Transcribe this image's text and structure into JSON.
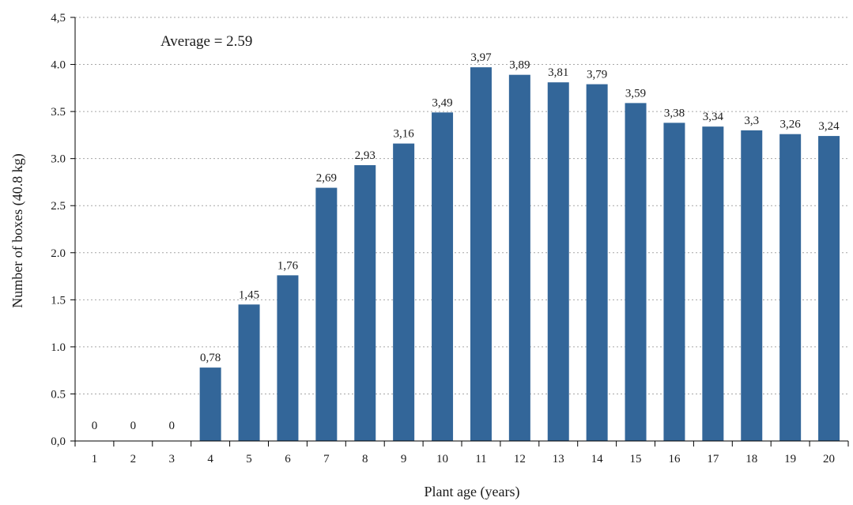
{
  "chart_data": {
    "type": "bar",
    "title": "",
    "xlabel": "Plant age (years)",
    "ylabel": "Number of boxes (40.8 kg)",
    "annotation": "Average = 2.59",
    "categories": [
      "1",
      "2",
      "3",
      "4",
      "5",
      "6",
      "7",
      "8",
      "9",
      "10",
      "11",
      "12",
      "13",
      "14",
      "15",
      "16",
      "17",
      "18",
      "19",
      "20"
    ],
    "values": [
      0,
      0,
      0,
      0.78,
      1.45,
      1.76,
      2.69,
      2.93,
      3.16,
      3.49,
      3.97,
      3.89,
      3.81,
      3.79,
      3.59,
      3.38,
      3.34,
      3.3,
      3.26,
      3.24
    ],
    "value_labels": [
      "0",
      "0",
      "0",
      "0,78",
      "1,45",
      "1,76",
      "2,69",
      "2,93",
      "3,16",
      "3,49",
      "3,97",
      "3,89",
      "3,81",
      "3,79",
      "3,59",
      "3,38",
      "3,34",
      "3,3",
      "3,26",
      "3,24"
    ],
    "y_ticks": [
      0,
      0.5,
      1,
      1.5,
      2,
      2.5,
      3,
      3.5,
      4,
      4.5
    ],
    "y_tick_labels": [
      "0,0",
      "0.5",
      "1.0",
      "1.5",
      "2.0",
      "2.5",
      "3.0",
      "3.5",
      "4.0",
      "4,5"
    ],
    "ylim": [
      0,
      4.5
    ],
    "grid": true,
    "legend": "none",
    "bar_color": "#336699",
    "grid_color": "#a6a6a6",
    "axis_color": "#000000"
  }
}
